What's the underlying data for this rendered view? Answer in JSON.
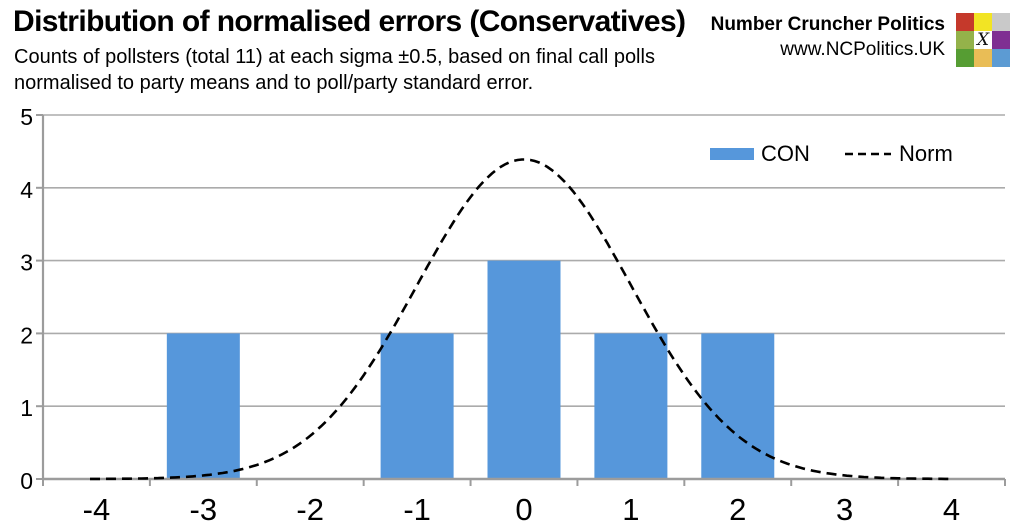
{
  "header": {
    "title": "Distribution of normalised errors (Conservatives)",
    "subtitle_lines": [
      "Counts of pollsters (total 11) at each sigma ±0.5, based on final call polls",
      "normalised to party means and to poll/party standard error."
    ]
  },
  "brand": {
    "name": "Number Cruncher Politics",
    "url": "www.NCPolitics.UK",
    "logo_x_glyph": "X",
    "logo_colors": [
      [
        "#c5392b",
        "#f2e424",
        "#c9c9c9"
      ],
      [
        "#94b24a",
        "#ffffff",
        "#7f2f92"
      ],
      [
        "#569d33",
        "#e9bd56",
        "#5c9bd3"
      ]
    ]
  },
  "chart_data": {
    "type": "bar",
    "title": "Distribution of normalised errors (Conservatives)",
    "categories": [
      "-4",
      "-3",
      "-2",
      "-1",
      "0",
      "1",
      "2",
      "3",
      "4"
    ],
    "series": [
      {
        "name": "CON",
        "type": "bar",
        "color": "#5697db",
        "values": [
          0,
          2,
          0,
          2,
          3,
          2,
          2,
          0,
          0
        ]
      }
    ],
    "curve": {
      "name": "Norm",
      "type": "line",
      "style": "dashed",
      "color": "#000000",
      "amplitude": 4.39,
      "mean": 0,
      "sd": 1,
      "x_range": [
        -4.06,
        4.0
      ]
    },
    "total_count": 11,
    "ylim": [
      0,
      5
    ],
    "yticks": [
      0,
      1,
      2,
      3,
      4,
      5
    ],
    "grid": "horizontal",
    "gridline_color": "#ababab",
    "axis_color": "#9c9c9c",
    "legend_position": "top-right-inside"
  }
}
